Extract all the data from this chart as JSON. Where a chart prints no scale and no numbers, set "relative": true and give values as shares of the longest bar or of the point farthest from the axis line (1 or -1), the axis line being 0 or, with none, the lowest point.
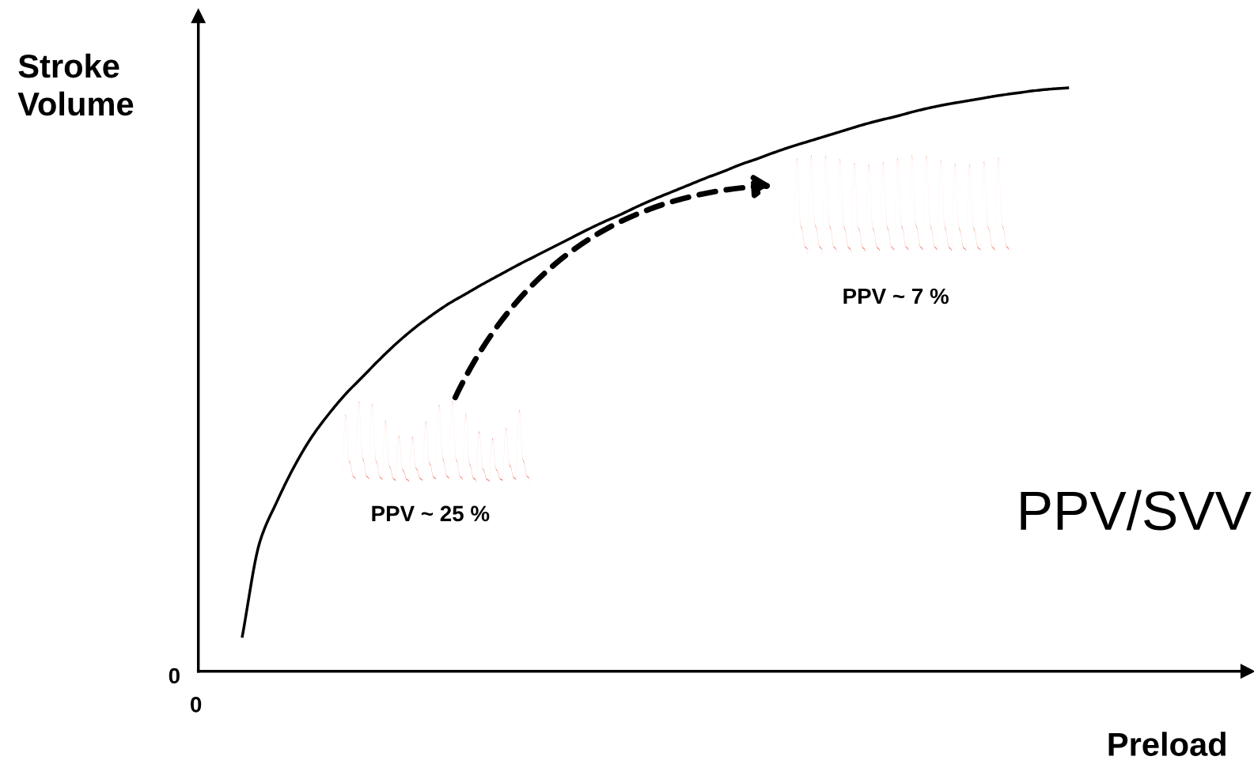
{
  "chart_data": {
    "type": "line",
    "relative": true,
    "xlabel": "Preload",
    "ylabel": "Stroke\nVolume",
    "categories": [
      null,
      null,
      null,
      null,
      null,
      null,
      null,
      null,
      null,
      null,
      null,
      null,
      null,
      null,
      null,
      null,
      null,
      null,
      null,
      null,
      null,
      null,
      null,
      null,
      null,
      null,
      null,
      null,
      null,
      null,
      null,
      null,
      null,
      null,
      null,
      null,
      null,
      null,
      null,
      null,
      null,
      null,
      null,
      null,
      null,
      null,
      null,
      null,
      null
    ],
    "series": [
      {
        "color": "#000000",
        "values": [
          0.06,
          0.22,
          0.29,
          0.35,
          0.4,
          0.44,
          0.475,
          0.505,
          0.535,
          0.563,
          0.588,
          0.61,
          0.63,
          0.647,
          0.664,
          0.68,
          0.696,
          0.711,
          0.726,
          0.741,
          0.756,
          0.77,
          0.783,
          0.797,
          0.81,
          0.822,
          0.834,
          0.846,
          0.857,
          0.869,
          0.879,
          0.89,
          0.9,
          0.909,
          0.918,
          0.927,
          0.936,
          0.944,
          0.951,
          0.959,
          0.966,
          0.972,
          0.977,
          0.982,
          0.987,
          0.991,
          0.995,
          0.998,
          1.0
        ]
      }
    ],
    "annotations": [
      "PPV ~ 7 %",
      "PPV ~ 25 %",
      "PPV/SVV",
      "0",
      "0"
    ],
    "marker": "none",
    "line_style": "solid",
    "legend": false
  }
}
